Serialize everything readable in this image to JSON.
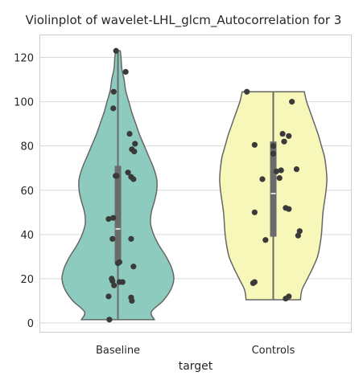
{
  "chart_data": {
    "type": "violin",
    "title": "Violinplot of wavelet-LHL_glcm_Autocorrelation for 3",
    "xlabel": "target",
    "ylabel": "",
    "categories": [
      "Baseline",
      "Controls"
    ],
    "ylim": [
      -4,
      130
    ],
    "yticks": [
      0,
      20,
      40,
      60,
      80,
      100,
      120
    ],
    "grid": "horizontal",
    "colors": {
      "Baseline": "#8ecbbf",
      "Controls": "#f7f7b9",
      "outline": "#666666",
      "box": "#6b6b6b",
      "points": "#3a3a3a",
      "median": "#ffffff",
      "grid": "#d9d9d9"
    },
    "violins": [
      {
        "name": "Baseline",
        "min": 1.5,
        "max": 123,
        "q1": 27,
        "median": 42.5,
        "q3": 71,
        "profile": [
          [
            1.5,
            0.47
          ],
          [
            5,
            0.43
          ],
          [
            10,
            0.58
          ],
          [
            15,
            0.68
          ],
          [
            20,
            0.72
          ],
          [
            25,
            0.69
          ],
          [
            30,
            0.62
          ],
          [
            35,
            0.53
          ],
          [
            40,
            0.46
          ],
          [
            45,
            0.42
          ],
          [
            50,
            0.43
          ],
          [
            55,
            0.47
          ],
          [
            60,
            0.5
          ],
          [
            65,
            0.5
          ],
          [
            70,
            0.46
          ],
          [
            75,
            0.4
          ],
          [
            80,
            0.34
          ],
          [
            85,
            0.28
          ],
          [
            90,
            0.23
          ],
          [
            95,
            0.18
          ],
          [
            100,
            0.14
          ],
          [
            105,
            0.1
          ],
          [
            110,
            0.08
          ],
          [
            115,
            0.05
          ],
          [
            120,
            0.04
          ],
          [
            123,
            0.03
          ]
        ],
        "points": [
          [
            -0.012,
            123
          ],
          [
            0.05,
            113.5
          ],
          [
            -0.027,
            104.5
          ],
          [
            -0.03,
            97
          ],
          [
            0.075,
            85.5
          ],
          [
            0.11,
            81
          ],
          [
            0.09,
            78.5
          ],
          [
            0.105,
            77.5
          ],
          [
            -0.015,
            66.5
          ],
          [
            -0.008,
            66.5
          ],
          [
            0.065,
            68
          ],
          [
            0.085,
            66
          ],
          [
            0.1,
            65
          ],
          [
            -0.06,
            47
          ],
          [
            -0.03,
            47.5
          ],
          [
            -0.035,
            38
          ],
          [
            0.085,
            38
          ],
          [
            0.0,
            27
          ],
          [
            0.01,
            27.5
          ],
          [
            0.1,
            25.5
          ],
          [
            -0.035,
            19
          ],
          [
            -0.04,
            20
          ],
          [
            -0.025,
            17
          ],
          [
            0.01,
            18.5
          ],
          [
            0.03,
            18.5
          ],
          [
            -0.06,
            12
          ],
          [
            0.085,
            11.5
          ],
          [
            0.09,
            10
          ],
          [
            -0.055,
            1.5
          ]
        ]
      },
      {
        "name": "Controls",
        "min": 10.5,
        "max": 104.5,
        "q1": 39,
        "median": 58.5,
        "q3": 82,
        "profile": [
          [
            10.5,
            0.35
          ],
          [
            15,
            0.37
          ],
          [
            20,
            0.44
          ],
          [
            25,
            0.51
          ],
          [
            30,
            0.57
          ],
          [
            35,
            0.6
          ],
          [
            40,
            0.62
          ],
          [
            45,
            0.63
          ],
          [
            50,
            0.64
          ],
          [
            55,
            0.66
          ],
          [
            60,
            0.68
          ],
          [
            65,
            0.69
          ],
          [
            70,
            0.68
          ],
          [
            75,
            0.66
          ],
          [
            80,
            0.62
          ],
          [
            85,
            0.58
          ],
          [
            90,
            0.53
          ],
          [
            95,
            0.48
          ],
          [
            100,
            0.43
          ],
          [
            104.5,
            0.4
          ]
        ],
        "points": [
          [
            -0.17,
            104.5
          ],
          [
            0.12,
            100
          ],
          [
            0.06,
            85.5
          ],
          [
            0.1,
            84.5
          ],
          [
            0.07,
            82
          ],
          [
            -0.12,
            80.5
          ],
          [
            0.0,
            80
          ],
          [
            0.0,
            76.5
          ],
          [
            0.05,
            69
          ],
          [
            0.02,
            68.5
          ],
          [
            0.15,
            69.5
          ],
          [
            -0.07,
            65
          ],
          [
            0.04,
            65.5
          ],
          [
            0.08,
            52
          ],
          [
            0.1,
            51.5
          ],
          [
            -0.12,
            50
          ],
          [
            0.17,
            41.5
          ],
          [
            0.16,
            39.5
          ],
          [
            -0.05,
            37.5
          ],
          [
            -0.12,
            18.5
          ],
          [
            -0.13,
            18
          ],
          [
            0.1,
            12
          ],
          [
            0.08,
            11
          ]
        ]
      }
    ]
  }
}
